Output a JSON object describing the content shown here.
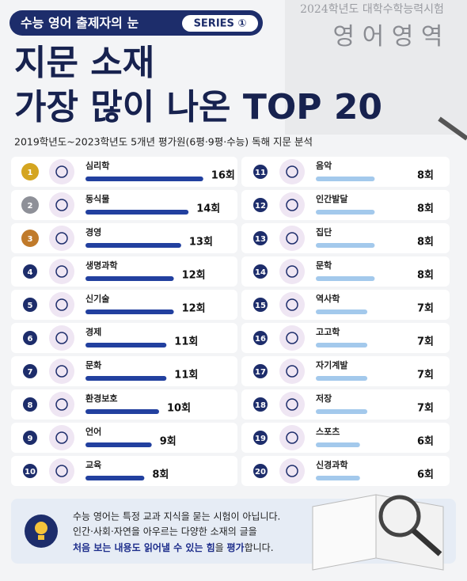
{
  "header": {
    "badge": "수능 영어 출제자의 눈",
    "series": "SERIES ①",
    "title_line1": "지문 소재",
    "title_line2": "가장 많이 나온 TOP 20",
    "subtitle": "2019학년도~2023학년도 5개년 평가원(6평·9평·수능) 독해 지문 분석",
    "bg_line1": "2024학년도 대학수학능력시험",
    "bg_line2": "영 어 영 역"
  },
  "chart_data": {
    "type": "bar",
    "ranks": [
      1,
      2,
      3,
      4,
      5,
      6,
      7,
      8,
      9,
      10,
      11,
      12,
      13,
      14,
      15,
      16,
      17,
      18,
      19,
      20
    ],
    "categories": [
      "심리학",
      "동식물",
      "경영",
      "생명과학",
      "신기술",
      "경제",
      "문화",
      "환경보호",
      "언어",
      "교육",
      "음악",
      "인간발달",
      "집단",
      "문학",
      "역사학",
      "고고학",
      "자기계발",
      "저장",
      "스포츠",
      "신경과학"
    ],
    "values": [
      16,
      14,
      13,
      12,
      12,
      11,
      11,
      10,
      9,
      8,
      8,
      8,
      8,
      8,
      7,
      7,
      7,
      7,
      6,
      6
    ],
    "value_labels": [
      "16회",
      "14회",
      "13회",
      "12회",
      "12회",
      "11회",
      "11회",
      "10회",
      "9회",
      "8회",
      "8회",
      "8회",
      "8회",
      "8회",
      "7회",
      "7회",
      "7회",
      "7회",
      "6회",
      "6회"
    ],
    "colors": [
      "#22409f",
      "#22409f",
      "#22409f",
      "#22409f",
      "#22409f",
      "#22409f",
      "#22409f",
      "#22409f",
      "#22409f",
      "#22409f",
      "#a3c9ec",
      "#a3c9ec",
      "#a3c9ec",
      "#a3c9ec",
      "#a3c9ec",
      "#a3c9ec",
      "#a3c9ec",
      "#a3c9ec",
      "#a3c9ec",
      "#a3c9ec"
    ],
    "rank_colors": [
      "#d4a520",
      "#8e9098",
      "#c07a2a"
    ]
  },
  "footer": {
    "line1": "수능 영어는 특정 교과 지식을 묻는 시험이 아닙니다.",
    "line2": "인간·사회·자연을 아우르는 다양한 소재의 글을",
    "line3": [
      "처음 보는 내용도 읽어낼 수 있는 힘",
      "을 ",
      "평가",
      "합니다."
    ]
  }
}
